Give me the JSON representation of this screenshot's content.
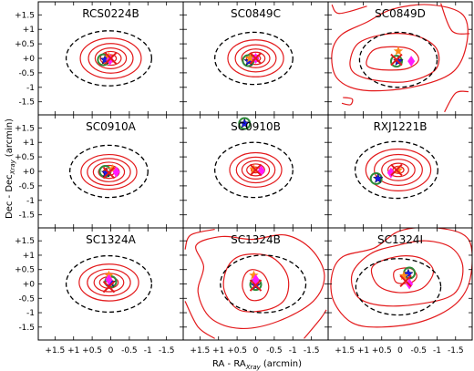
{
  "chart_data": {
    "type": "contour-grid",
    "xlabel": "RA - RA",
    "xlabel_sub": "Xray",
    "xlabel_unit": "(arcmin)",
    "ylabel": "Dec - Dec",
    "ylabel_sub": "Xray",
    "ylabel_unit": "(arcmin)",
    "xlim": [
      1.95,
      -1.95
    ],
    "ylim": [
      -1.95,
      1.95
    ],
    "x_ticks": [
      "+1.5",
      "+1",
      "+0.5",
      "0",
      "-0.5",
      "-1",
      "-1.5"
    ],
    "x_tick_values": [
      1.5,
      1.0,
      0.5,
      0.0,
      -0.5,
      -1.0,
      -1.5
    ],
    "y_ticks": [
      "+1.5",
      "+1",
      "+0.5",
      "+0",
      "-0.5",
      "-1",
      "-1.5"
    ],
    "y_tick_values": [
      1.5,
      1.0,
      0.5,
      0.0,
      -0.5,
      -1.0,
      -1.5
    ],
    "colors": {
      "contour": "#e31a1c",
      "circle": "#000000",
      "green_marker": "#2e8b3a",
      "blue_marker": "#1a1ae6",
      "orange_marker": "#ff8c1a",
      "magenta_marker": "#ff1aff",
      "cross": "#e31a1c"
    },
    "panels": [
      {
        "title": "RCS0224B",
        "circle": {
          "cx": 0.05,
          "cy": 0.0,
          "rx": 1.15,
          "ry": 0.95
        },
        "contours": {
          "type": "ellipses",
          "cx": 0.0,
          "cy": 0.0,
          "ratio": 0.85,
          "radii": [
            0.15,
            0.28,
            0.42,
            0.6,
            0.82
          ]
        },
        "markers": {
          "green": [
            0.2,
            -0.05
          ],
          "blue": [
            0.15,
            -0.05
          ],
          "orange": [
            0.05,
            0.05
          ],
          "magenta": [
            0.02,
            -0.05
          ],
          "cross": [
            0.0,
            0.0
          ]
        }
      },
      {
        "title": "SC0849C",
        "circle": {
          "cx": 0.05,
          "cy": 0.0,
          "rx": 1.05,
          "ry": 0.9
        },
        "contours": {
          "type": "ellipses",
          "cx": 0.0,
          "cy": 0.0,
          "ratio": 0.85,
          "radii": [
            0.13,
            0.25,
            0.38,
            0.55,
            0.75
          ]
        },
        "markers": {
          "green": [
            0.2,
            -0.08
          ],
          "blue": [
            0.18,
            -0.1
          ],
          "orange": [
            0.15,
            0.0
          ],
          "magenta": [
            0.0,
            0.0
          ],
          "cross": [
            0.0,
            0.0
          ]
        }
      },
      {
        "title": "SC0849D",
        "circle": {
          "cx": 0.05,
          "cy": -0.05,
          "rx": 1.05,
          "ry": 0.95
        },
        "contours": {
          "type": "paths",
          "shapes": [
            [
              [
                0.9,
                -0.05
              ],
              [
                0.7,
                0.3
              ],
              [
                0.2,
                0.4
              ],
              [
                -0.3,
                0.3
              ],
              [
                -0.5,
                -0.05
              ],
              [
                -0.2,
                -0.35
              ],
              [
                0.4,
                -0.4
              ],
              [
                0.85,
                -0.3
              ]
            ],
            [
              [
                1.35,
                -0.05
              ],
              [
                1.1,
                0.55
              ],
              [
                0.3,
                0.85
              ],
              [
                -0.5,
                0.75
              ],
              [
                -1.0,
                0.3
              ],
              [
                -0.95,
                -0.4
              ],
              [
                -0.2,
                -0.8
              ],
              [
                0.7,
                -0.75
              ],
              [
                1.25,
                -0.5
              ]
            ],
            [
              [
                1.85,
                0.15
              ],
              [
                1.6,
                0.8
              ],
              [
                0.9,
                1.25
              ],
              [
                0.2,
                1.7
              ],
              [
                -0.8,
                1.85
              ],
              [
                -1.7,
                1.5
              ],
              [
                -1.8,
                0.5
              ],
              [
                -1.4,
                -0.5
              ],
              [
                -0.3,
                -1.0
              ],
              [
                1.0,
                -1.1
              ],
              [
                1.7,
                -0.7
              ]
            ],
            [
              [
                1.85,
                1.85
              ],
              [
                1.65,
                1.55
              ],
              [
                0.9,
                1.8
              ]
            ],
            [
              [
                -1.1,
                1.9
              ],
              [
                -1.4,
                0.95
              ],
              [
                -1.88,
                0.85
              ]
            ],
            [
              [
                1.55,
                -1.35
              ],
              [
                1.3,
                -1.4
              ],
              [
                1.35,
                -1.6
              ],
              [
                1.58,
                -1.55
              ]
            ],
            [
              [
                -1.2,
                -1.85
              ],
              [
                -1.5,
                -1.2
              ],
              [
                -1.85,
                -1.15
              ]
            ]
          ]
        },
        "markers": {
          "green": [
            0.1,
            -0.1
          ],
          "blue": [
            0.05,
            -0.1
          ],
          "orange": [
            0.05,
            0.25
          ],
          "magenta": [
            -0.3,
            -0.1
          ],
          "cross": [
            0.1,
            -0.05
          ]
        }
      },
      {
        "title": "SC0910A",
        "circle": {
          "cx": 0.05,
          "cy": 0.0,
          "rx": 1.05,
          "ry": 0.9
        },
        "contours": {
          "type": "ellipses",
          "cx": 0.05,
          "cy": -0.02,
          "ratio": 0.8,
          "radii": [
            0.15,
            0.28,
            0.42,
            0.58,
            0.75
          ]
        },
        "markers": {
          "green": [
            0.15,
            0.0
          ],
          "blue": [
            0.12,
            -0.05
          ],
          "orange": [
            -0.05,
            0.08
          ],
          "magenta": [
            -0.15,
            -0.02
          ],
          "cross": [
            0.05,
            -0.05
          ]
        }
      },
      {
        "title": "SC0910B",
        "circle": {
          "cx": 0.05,
          "cy": 0.05,
          "rx": 1.05,
          "ry": 0.95
        },
        "contours": {
          "type": "ellipses",
          "cx": 0.0,
          "cy": 0.05,
          "ratio": 0.85,
          "radii": [
            0.12,
            0.24,
            0.37,
            0.52,
            0.7
          ]
        },
        "markers": {
          "green": [
            0.3,
            1.65
          ],
          "blue": [
            0.3,
            1.65
          ],
          "orange": [
            0.05,
            0.08
          ],
          "magenta": [
            -0.15,
            0.02
          ],
          "cross": [
            0.0,
            0.05
          ]
        }
      },
      {
        "title": "RXJ1221B",
        "circle": {
          "cx": 0.1,
          "cy": 0.05,
          "rx": 1.12,
          "ry": 0.98
        },
        "contours": {
          "type": "ellipses",
          "cx": 0.05,
          "cy": 0.05,
          "ratio": 0.82,
          "radii": [
            0.15,
            0.28,
            0.45,
            0.65,
            0.88
          ]
        },
        "markers": {
          "green": [
            0.65,
            -0.25
          ],
          "blue": [
            0.6,
            -0.25
          ],
          "orange": [
            0.05,
            0.05
          ],
          "magenta": [
            0.25,
            -0.05
          ],
          "cross": [
            0.1,
            0.05
          ]
        }
      },
      {
        "title": "SC1324A",
        "circle": {
          "cx": 0.05,
          "cy": 0.0,
          "rx": 1.15,
          "ry": 0.98
        },
        "contours": {
          "type": "ellipses",
          "cx": 0.05,
          "cy": 0.05,
          "ratio": 0.8,
          "radii": [
            0.12,
            0.25,
            0.4,
            0.58,
            0.8
          ]
        },
        "markers": {
          "green": [
            0.0,
            0.08
          ],
          "blue": [
            0.0,
            0.05
          ],
          "orange": [
            0.05,
            0.3
          ],
          "magenta": [
            0.05,
            0.15
          ],
          "cross": [
            0.05,
            -0.1
          ]
        }
      },
      {
        "title": "SC1324B",
        "circle": {
          "cx": -0.2,
          "cy": 0.0,
          "rx": 1.15,
          "ry": 1.0
        },
        "contours": {
          "type": "paths",
          "shapes": [
            [
              [
                0.3,
                0.3
              ],
              [
                0.1,
                0.5
              ],
              [
                -0.2,
                0.35
              ],
              [
                -0.35,
                -0.1
              ],
              [
                -0.2,
                -0.5
              ],
              [
                0.15,
                -0.55
              ],
              [
                0.35,
                -0.15
              ]
            ],
            [
              [
                0.75,
                0.6
              ],
              [
                0.35,
                1.0
              ],
              [
                -0.4,
                0.95
              ],
              [
                -0.85,
                0.3
              ],
              [
                -0.8,
                -0.5
              ],
              [
                -0.3,
                -0.9
              ],
              [
                0.45,
                -0.9
              ],
              [
                0.85,
                -0.2
              ]
            ],
            [
              [
                1.4,
                0.6
              ],
              [
                1.6,
                1.35
              ],
              [
                0.9,
                1.65
              ],
              [
                0.1,
                1.55
              ],
              [
                -0.8,
                1.7
              ],
              [
                -1.5,
                1.2
              ],
              [
                -1.85,
                0.3
              ],
              [
                -1.55,
                -0.6
              ],
              [
                -0.6,
                -1.3
              ],
              [
                0.4,
                -1.55
              ],
              [
                1.2,
                -1.2
              ],
              [
                1.55,
                -0.3
              ]
            ],
            [
              [
                1.9,
                1.2
              ],
              [
                1.75,
                1.7
              ],
              [
                1.1,
                1.9
              ]
            ],
            [
              [
                1.9,
                -0.6
              ],
              [
                1.55,
                -1.5
              ],
              [
                1.1,
                -1.9
              ]
            ],
            [
              [
                -1.3,
                -1.9
              ],
              [
                -1.75,
                -1.2
              ],
              [
                -1.9,
                -0.9
              ]
            ]
          ]
        },
        "markers": {
          "green": [
            0.0,
            -0.02
          ],
          "blue": [
            0.0,
            -0.05
          ],
          "orange": [
            0.05,
            0.3
          ],
          "magenta": [
            0.0,
            0.15
          ],
          "cross": [
            0.0,
            -0.05
          ]
        }
      },
      {
        "title": "SC1324I",
        "circle": {
          "cx": 0.05,
          "cy": -0.1,
          "rx": 1.15,
          "ry": 0.98
        },
        "contours": {
          "type": "paths",
          "shapes": [
            [
              [
                0.15,
                0.45
              ],
              [
                -0.25,
                0.55
              ],
              [
                -0.45,
                0.3
              ],
              [
                -0.3,
                0.05
              ],
              [
                0.1,
                0.05
              ]
            ],
            [
              [
                0.75,
                0.6
              ],
              [
                0.1,
                0.95
              ],
              [
                -0.55,
                0.9
              ],
              [
                -0.9,
                0.45
              ],
              [
                -0.6,
                -0.15
              ],
              [
                0.05,
                -0.3
              ],
              [
                0.6,
                -0.05
              ]
            ],
            [
              [
                1.3,
                0.35
              ],
              [
                0.8,
                1.05
              ],
              [
                0.05,
                1.35
              ],
              [
                -0.7,
                1.5
              ],
              [
                -1.4,
                1.25
              ],
              [
                -1.7,
                0.55
              ],
              [
                -1.45,
                -0.35
              ],
              [
                -0.5,
                -0.7
              ],
              [
                0.5,
                -0.75
              ],
              [
                1.15,
                -0.45
              ]
            ],
            [
              [
                1.85,
                0.3
              ],
              [
                1.55,
                0.95
              ],
              [
                0.7,
                1.25
              ],
              [
                0.0,
                1.85
              ],
              [
                -1.0,
                1.95
              ],
              [
                -1.85,
                1.55
              ],
              [
                -1.9,
                0.2
              ],
              [
                -1.5,
                -0.7
              ],
              [
                -0.6,
                -1.3
              ],
              [
                0.5,
                -1.5
              ],
              [
                1.3,
                -1.35
              ],
              [
                1.8,
                -0.6
              ]
            ]
          ]
        },
        "markers": {
          "green": [
            -0.25,
            0.38
          ],
          "blue": [
            -0.22,
            0.35
          ],
          "orange": [
            -0.1,
            0.28
          ],
          "magenta": [
            -0.25,
            0.0
          ],
          "cross": [
            -0.15,
            0.1
          ]
        }
      }
    ]
  }
}
